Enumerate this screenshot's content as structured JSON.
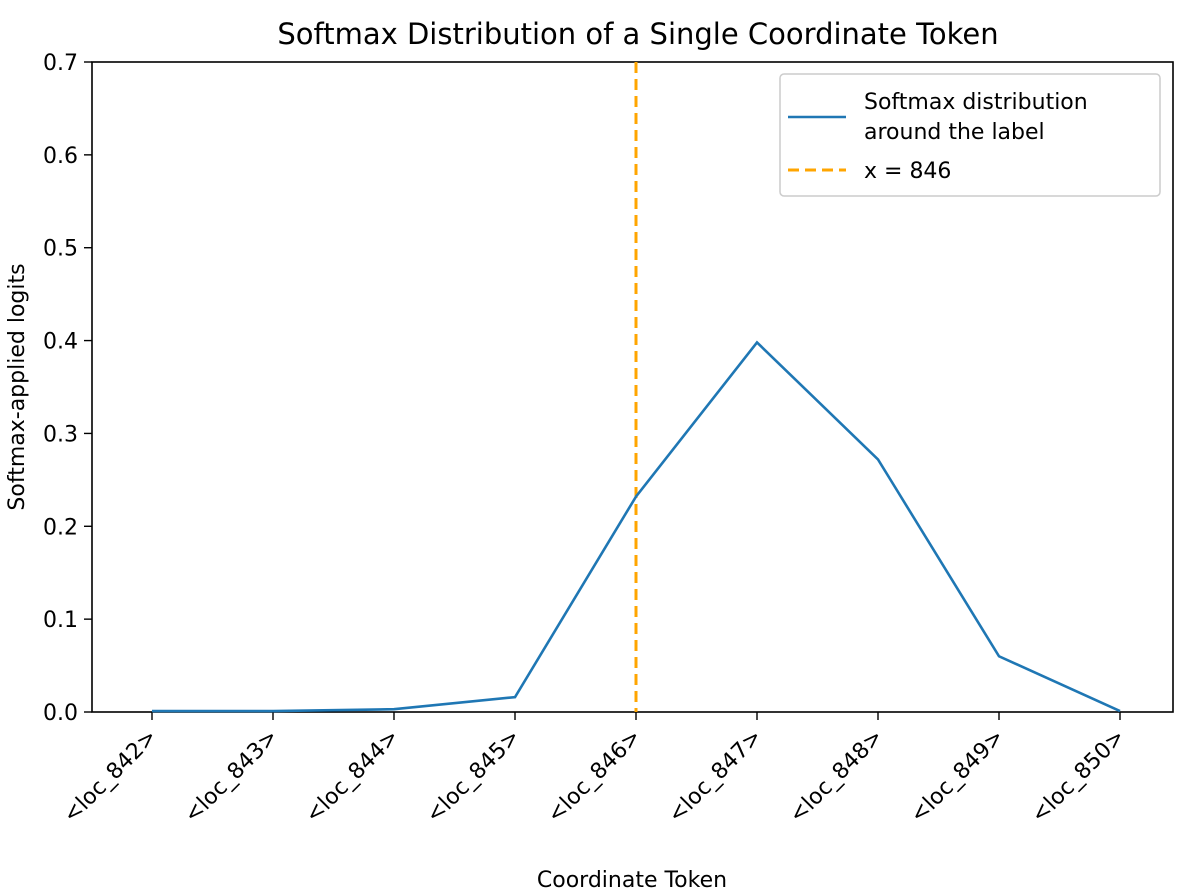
{
  "chart_data": {
    "type": "line",
    "title": "Softmax Distribution of a Single Coordinate Token",
    "xlabel": "Coordinate Token",
    "ylabel": "Softmax-applied logits",
    "categories": [
      "<loc_842>",
      "<loc_843>",
      "<loc_844>",
      "<loc_845>",
      "<loc_846>",
      "<loc_847>",
      "<loc_848>",
      "<loc_849>",
      "<loc_850>"
    ],
    "series": [
      {
        "name": "Softmax distribution around the label",
        "legend_lines": [
          "Softmax distribution",
          "around the label"
        ],
        "values": [
          0.001,
          0.001,
          0.003,
          0.016,
          0.232,
          0.398,
          0.272,
          0.06,
          0.001
        ],
        "color": "#1f77b4"
      }
    ],
    "reference_line": {
      "label": "x = 846",
      "category_index": 4,
      "color": "#ffa500",
      "style": "dashed"
    },
    "ylim": [
      0,
      0.7
    ],
    "yticks": [
      "0.0",
      "0.1",
      "0.2",
      "0.3",
      "0.4",
      "0.5",
      "0.6",
      "0.7"
    ],
    "grid": false,
    "legend_position": "top-right"
  }
}
